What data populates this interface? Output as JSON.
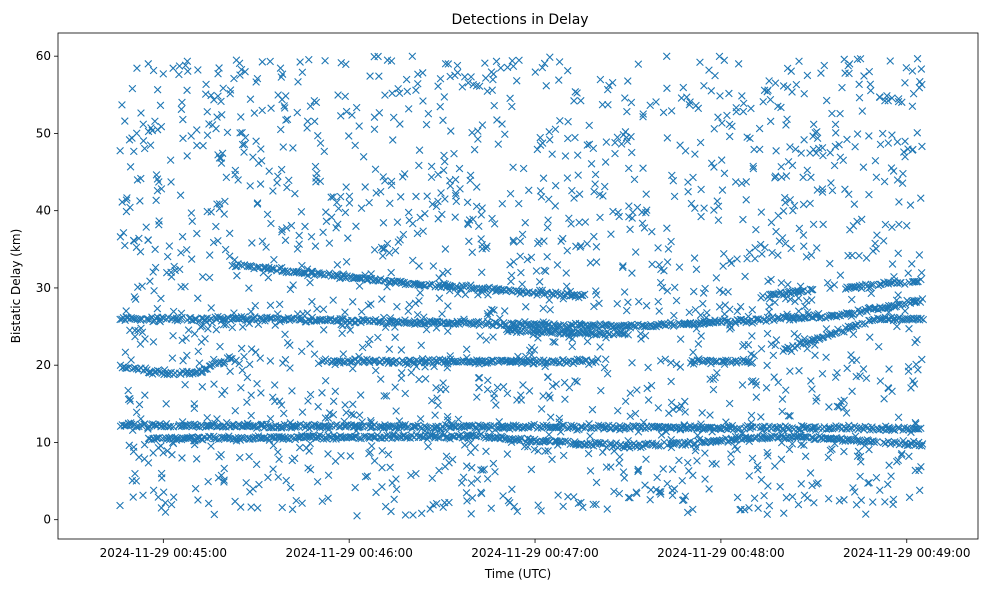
{
  "chart_data": {
    "type": "scatter",
    "title": "Detections in Delay",
    "xlabel": "Time (UTC)",
    "ylabel": "Bistatic Delay (km)",
    "marker": "x",
    "color": "#1f77b4",
    "xlim": [
      "2024-11-29 00:44:26",
      "2024-11-29 00:49:23"
    ],
    "ylim": [
      -2.5,
      63
    ],
    "x_ticks": [
      "2024-11-29 00:45:00",
      "2024-11-29 00:46:00",
      "2024-11-29 00:47:00",
      "2024-11-29 00:48:00",
      "2024-11-29 00:49:00"
    ],
    "y_ticks": [
      0,
      10,
      20,
      30,
      40,
      50,
      60
    ],
    "grid": false,
    "legend": "none",
    "time_range": [
      "2024-11-29 00:44:46",
      "2024-11-29 00:49:05"
    ],
    "tracks": [
      {
        "points": [
          [
            "00:44:46",
            12.2
          ],
          [
            "00:49:05",
            11.8
          ]
        ]
      },
      {
        "points": [
          [
            "00:44:55",
            10.5
          ],
          [
            "00:46:40",
            10.8
          ],
          [
            "00:47:30",
            9.5
          ],
          [
            "00:48:20",
            10.8
          ],
          [
            "00:49:05",
            9.8
          ]
        ]
      },
      {
        "points": [
          [
            "00:44:46",
            19.8
          ],
          [
            "00:45:00",
            19.0
          ],
          [
            "00:45:10",
            19.0
          ],
          [
            "00:45:22",
            21.0
          ]
        ]
      },
      {
        "points": [
          [
            "00:45:22",
            33.0
          ],
          [
            "00:46:20",
            30.5
          ],
          [
            "00:47:15",
            29.0
          ]
        ]
      },
      {
        "points": [
          [
            "00:48:15",
            29.0
          ],
          [
            "00:48:30",
            29.8
          ]
        ]
      },
      {
        "points": [
          [
            "00:48:40",
            30.0
          ],
          [
            "00:49:05",
            31.0
          ]
        ]
      },
      {
        "points": [
          [
            "00:44:46",
            26.0
          ],
          [
            "00:45:30",
            26.0
          ],
          [
            "00:47:30",
            25.0
          ],
          [
            "00:48:40",
            26.5
          ],
          [
            "00:49:05",
            28.5
          ]
        ]
      },
      {
        "points": [
          [
            "00:46:50",
            24.5
          ],
          [
            "00:47:30",
            24.0
          ]
        ]
      },
      {
        "points": [
          [
            "00:48:20",
            22.0
          ],
          [
            "00:48:50",
            26.0
          ],
          [
            "00:49:05",
            26.0
          ]
        ]
      },
      {
        "points": [
          [
            "00:45:50",
            20.5
          ],
          [
            "00:47:20",
            20.5
          ]
        ]
      },
      {
        "points": [
          [
            "00:47:50",
            20.5
          ],
          [
            "00:48:10",
            20.5
          ]
        ]
      }
    ],
    "noise": {
      "density": "high",
      "y_range": [
        0.5,
        60
      ],
      "approx_count": 1800
    }
  }
}
